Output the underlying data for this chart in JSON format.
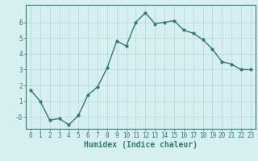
{
  "x": [
    0,
    1,
    2,
    3,
    4,
    5,
    6,
    7,
    8,
    9,
    10,
    11,
    12,
    13,
    14,
    15,
    16,
    17,
    18,
    19,
    20,
    21,
    22,
    23
  ],
  "y": [
    1.7,
    1.0,
    -0.2,
    -0.1,
    -0.5,
    0.1,
    1.4,
    1.9,
    3.1,
    4.8,
    4.5,
    6.0,
    6.6,
    5.9,
    6.0,
    6.1,
    5.5,
    5.3,
    4.9,
    4.3,
    3.5,
    3.35,
    3.0,
    3.0
  ],
  "line_color": "#2e7d6e",
  "marker": "o",
  "marker_size": 2.0,
  "bg_color": "#d6efef",
  "grid_color": "#b8d8d8",
  "xlabel": "Humidex (Indice chaleur)",
  "xlabel_fontsize": 7,
  "ytick_labels": [
    "-0",
    "1",
    "2",
    "3",
    "4",
    "5",
    "6"
  ],
  "ytick_vals": [
    0,
    1,
    2,
    3,
    4,
    5,
    6
  ],
  "xtick_vals": [
    0,
    1,
    2,
    3,
    4,
    5,
    6,
    7,
    8,
    9,
    10,
    11,
    12,
    13,
    14,
    15,
    16,
    17,
    18,
    19,
    20,
    21,
    22,
    23
  ],
  "ylim": [
    -0.75,
    7.1
  ],
  "xlim": [
    -0.5,
    23.5
  ],
  "tick_fontsize": 5.5,
  "line_width": 1.0
}
